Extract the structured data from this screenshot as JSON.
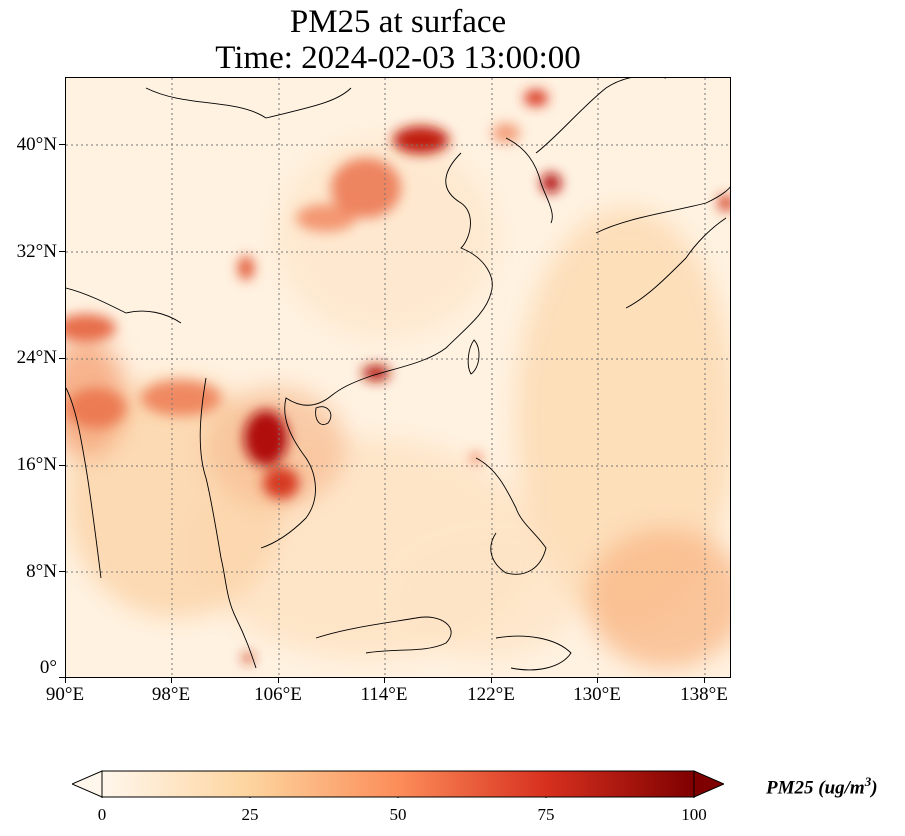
{
  "title": {
    "line1": "PM25 at surface",
    "line2": "Time: 2024-02-03 13:00:00"
  },
  "map": {
    "type": "filled contour map",
    "region": "East and Southeast Asia",
    "colormap": "OrRd",
    "colors": [
      "#fff7ec",
      "#fdd49e",
      "#fc8d59",
      "#d7301f",
      "#7f0000"
    ],
    "gridlines": "dotted",
    "coastlines": "thin black",
    "lat_ticks": [
      "0°",
      "8°N",
      "16°N",
      "24°N",
      "32°N",
      "40°N"
    ],
    "lon_ticks": [
      "90°E",
      "98°E",
      "106°E",
      "114°E",
      "122°E",
      "130°E",
      "138°E"
    ]
  },
  "colorbar": {
    "ticks": [
      "0",
      "25",
      "50",
      "75",
      "100"
    ],
    "range": [
      0,
      100
    ],
    "extend": "both",
    "label_main": "PM25 (ug/m",
    "label_sup": "3",
    "label_close": ")"
  }
}
